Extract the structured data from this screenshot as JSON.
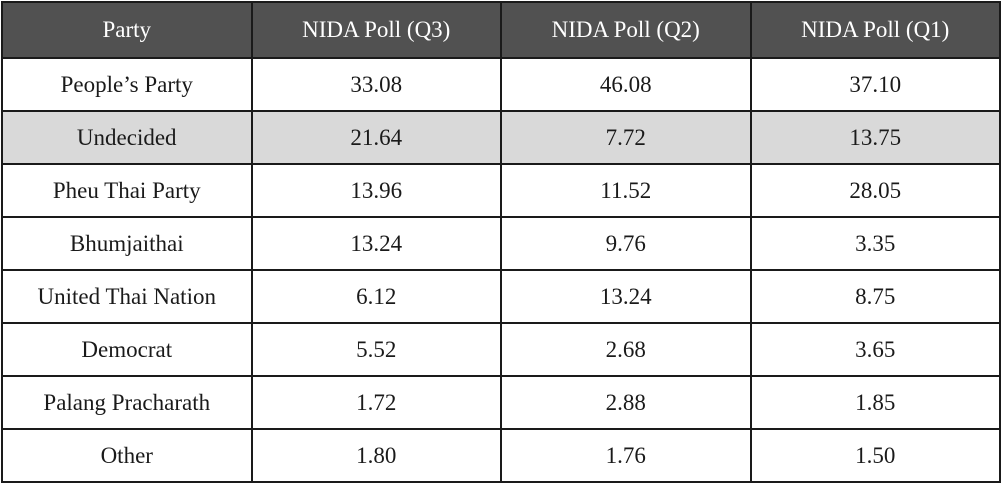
{
  "table": {
    "header": [
      "Party",
      "NIDA Poll (Q3)",
      "NIDA Poll (Q2)",
      "NIDA Poll (Q1)"
    ],
    "rows": [
      [
        "People’s Party",
        "33.08",
        "46.08",
        "37.10"
      ],
      [
        "Undecided",
        "21.64",
        "7.72",
        "13.75"
      ],
      [
        "Pheu Thai Party",
        "13.96",
        "11.52",
        "28.05"
      ],
      [
        "Bhumjaithai",
        "13.24",
        "9.76",
        "3.35"
      ],
      [
        "United Thai Nation",
        "6.12",
        "13.24",
        "8.75"
      ],
      [
        "Democrat",
        "5.52",
        "2.68",
        "3.65"
      ],
      [
        "Palang Pracharath",
        "1.72",
        "2.88",
        "1.85"
      ],
      [
        "Other",
        "1.80",
        "1.76",
        "1.50"
      ]
    ],
    "highlighted_row": 1
  }
}
